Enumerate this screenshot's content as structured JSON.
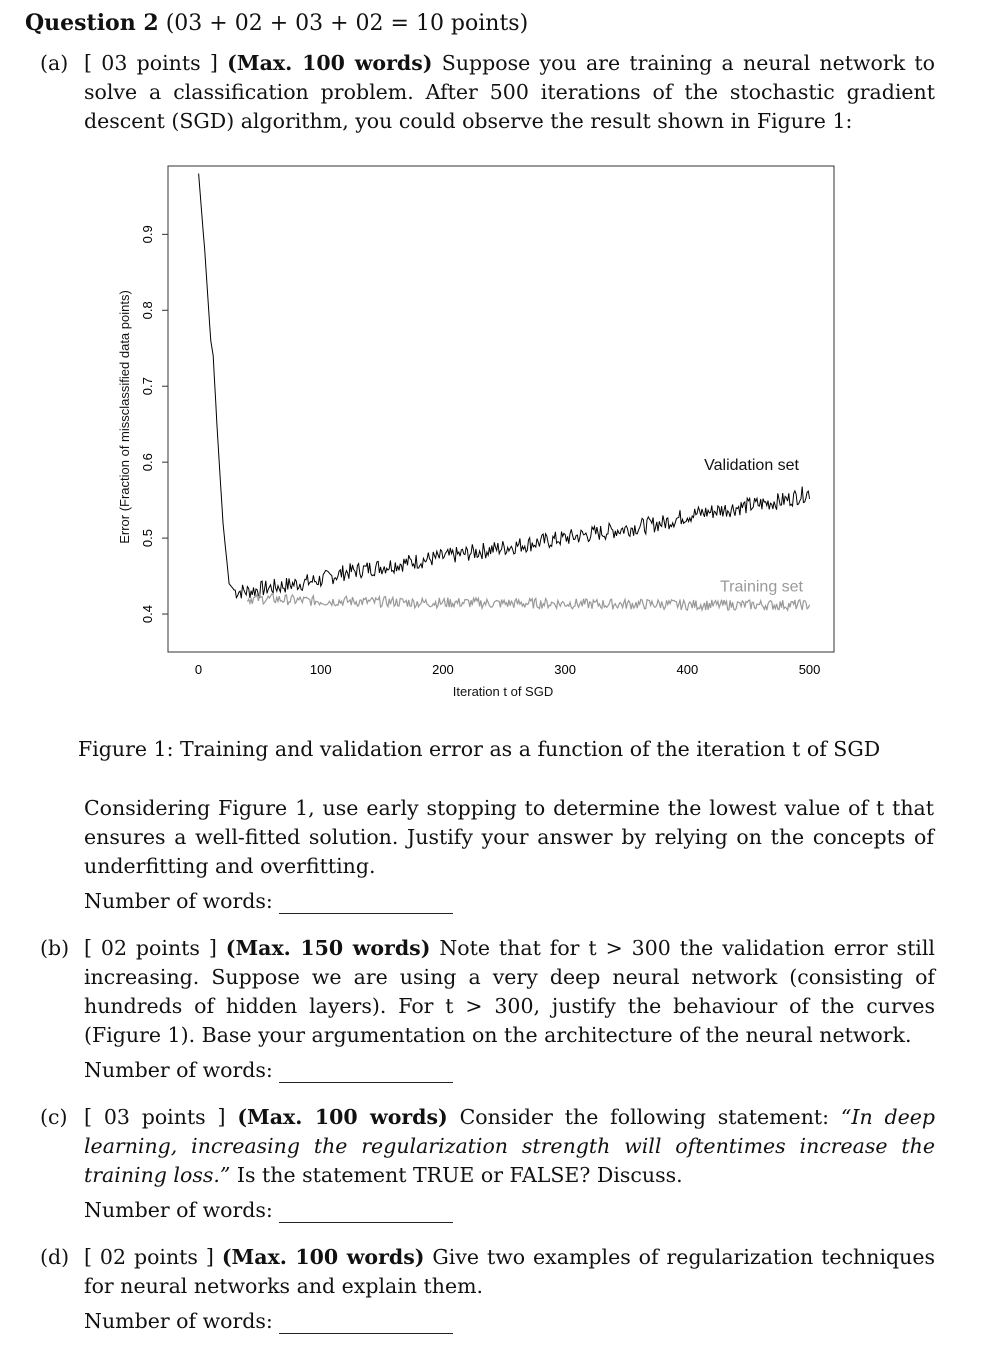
{
  "question": {
    "title_bold": "Question 2",
    "title_points": "(03 + 02 + 03 + 02 = 10 points)"
  },
  "part_a": {
    "label": "(a)",
    "points": "[ 03 points ]",
    "max_words": "(Max. 100 words)",
    "text": "Suppose you are training a neural network to solve a classification problem. After 500 iterations of the stochastic gradient descent (SGD) algorithm, you could observe the result shown in Figure 1:",
    "caption": "Figure 1: Training and validation error as a function of the iteration t of SGD",
    "question_text": "Considering Figure 1, use early stopping to determine the lowest value of t that ensures a well-fitted solution. Justify your answer by relying on the concepts of underfitting and overfitting.",
    "words_label": "Number of words:"
  },
  "part_b": {
    "label": "(b)",
    "points": "[ 02 points ]",
    "max_words": "(Max. 150 words)",
    "text": "Note that for t > 300 the validation error still increasing. Suppose we are using a very deep neural network (consisting of hundreds of hidden layers). For t > 300, justify the behaviour of the curves (Figure 1). Base your argumentation on the architecture of the neural network.",
    "words_label": "Number of words:"
  },
  "part_c": {
    "label": "(c)",
    "points": "[ 03 points ]",
    "max_words": "(Max. 100 words)",
    "text_pre": "Consider the following statement:",
    "quote": "“In deep learning, increasing the regularization strength will oftentimes increase the training loss.”",
    "text_post": "Is the statement TRUE or FALSE? Discuss.",
    "words_label": "Number of words:"
  },
  "part_d": {
    "label": "(d)",
    "points": "[ 02 points ]",
    "max_words": "(Max. 100 words)",
    "text": "Give two examples of regularization techniques for neural networks and explain them.",
    "words_label": "Number of words:"
  },
  "chart_data": {
    "type": "line",
    "xlabel": "Iteration t of SGD",
    "ylabel": "Error (Fraction of missclassified data points)",
    "xlim": [
      -25,
      520
    ],
    "ylim": [
      0.35,
      0.99
    ],
    "x_ticks": [
      0,
      100,
      200,
      300,
      400,
      500
    ],
    "y_ticks": [
      0.4,
      0.5,
      0.6,
      0.7,
      0.8,
      0.9
    ],
    "series": [
      {
        "name": "Validation set",
        "color": "#000000",
        "x": [
          0,
          5,
          10,
          12,
          15,
          20,
          25,
          30,
          40,
          60,
          80,
          100,
          120,
          140,
          160,
          180,
          200,
          220,
          240,
          260,
          280,
          300,
          320,
          340,
          360,
          380,
          400,
          420,
          440,
          460,
          480,
          500
        ],
        "y": [
          0.98,
          0.88,
          0.76,
          0.74,
          0.65,
          0.52,
          0.44,
          0.43,
          0.43,
          0.435,
          0.44,
          0.445,
          0.455,
          0.46,
          0.465,
          0.47,
          0.475,
          0.48,
          0.485,
          0.49,
          0.495,
          0.5,
          0.505,
          0.51,
          0.515,
          0.52,
          0.53,
          0.535,
          0.54,
          0.545,
          0.55,
          0.56
        ]
      },
      {
        "name": "Training set",
        "color": "#999999",
        "x": [
          40,
          60,
          80,
          100,
          120,
          140,
          160,
          180,
          200,
          220,
          240,
          260,
          280,
          300,
          320,
          340,
          360,
          380,
          400,
          420,
          440,
          460,
          480,
          500
        ],
        "y": [
          0.42,
          0.42,
          0.418,
          0.417,
          0.417,
          0.416,
          0.416,
          0.415,
          0.415,
          0.415,
          0.414,
          0.414,
          0.414,
          0.414,
          0.413,
          0.413,
          0.413,
          0.413,
          0.412,
          0.412,
          0.412,
          0.412,
          0.412,
          0.412
        ]
      }
    ]
  }
}
